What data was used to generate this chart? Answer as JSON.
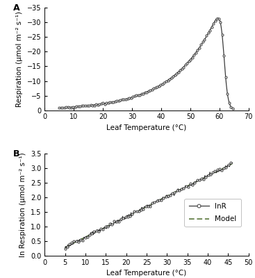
{
  "panel_A": {
    "label": "A",
    "xlabel": "Leaf Temperature (°C)",
    "ylabel": "Respiration (μmol m⁻² s⁻¹)",
    "xlim": [
      0,
      70
    ],
    "ylim_bottom": 0.0,
    "ylim_top": -35.0,
    "xticks": [
      0,
      10,
      20,
      30,
      40,
      50,
      60,
      70
    ],
    "yticks": [
      0.0,
      -5.0,
      -10.0,
      -15.0,
      -20.0,
      -25.0,
      -30.0,
      -35.0
    ]
  },
  "panel_B": {
    "label": "B",
    "xlabel": "Leaf Temperature (°C)",
    "ylabel": "ln Respiration (μmol m⁻² s⁻¹)",
    "xlim": [
      0,
      50
    ],
    "ylim": [
      0.0,
      3.5
    ],
    "xticks": [
      0,
      5,
      10,
      15,
      20,
      25,
      30,
      35,
      40,
      45,
      50
    ],
    "yticks": [
      0.0,
      0.5,
      1.0,
      1.5,
      2.0,
      2.5,
      3.0,
      3.5
    ]
  },
  "line_color_A": "#3a3a3a",
  "line_color_B_lnR": "#3a3a3a",
  "line_color_B_model": "#4a6b2a",
  "background_color": "#ffffff",
  "tick_label_fontsize": 7,
  "axis_label_fontsize": 7.5,
  "panel_label_fontsize": 9
}
